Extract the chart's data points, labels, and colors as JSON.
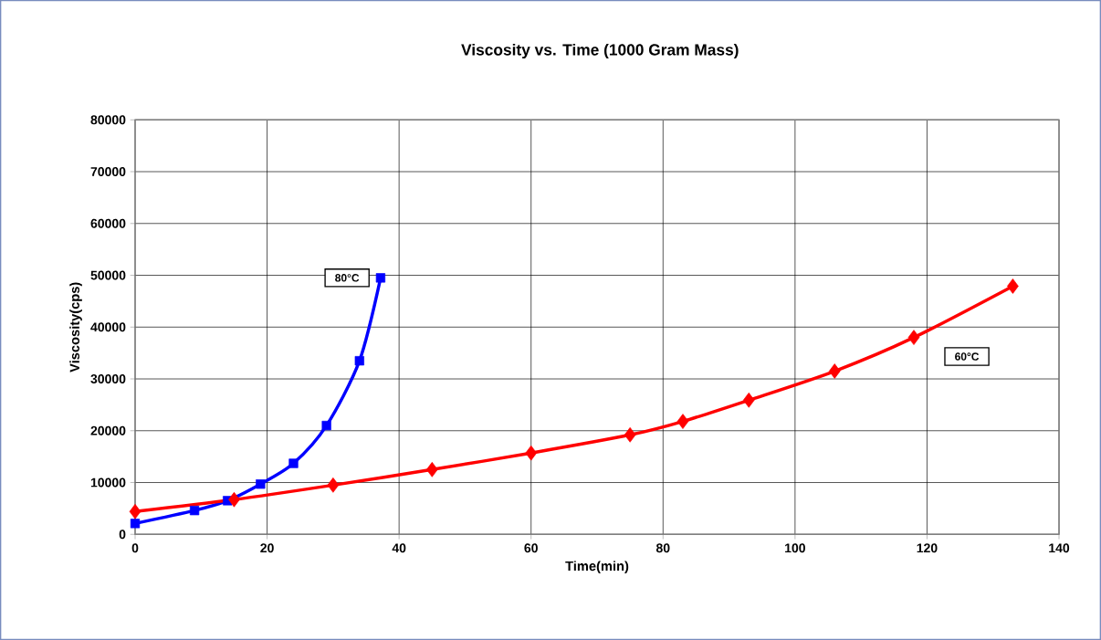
{
  "chart_data": {
    "type": "line",
    "title": "Viscosity vs. Time (1000 Gram Mass)",
    "xlabel": "Time(min)",
    "ylabel": "Viscosity(cps)",
    "series": [
      {
        "name": "80°C",
        "color": "#0000ff",
        "marker": "square",
        "x": [
          0,
          9,
          14,
          19,
          24,
          29,
          34,
          37.2
        ],
        "values": [
          2100,
          4600,
          6500,
          9700,
          13700,
          21000,
          33500,
          49500
        ]
      },
      {
        "name": "60°C",
        "color": "#ff0000",
        "marker": "diamond",
        "x": [
          0,
          15,
          30,
          45,
          60,
          75,
          83,
          93,
          106,
          118,
          133
        ],
        "values": [
          4400,
          6700,
          9500,
          12500,
          15700,
          19200,
          21800,
          25900,
          31500,
          38000,
          47900
        ]
      }
    ],
    "xlim": [
      0,
      140
    ],
    "xticks": [
      0,
      20,
      40,
      60,
      80,
      100,
      120,
      140
    ],
    "ylim": [
      0,
      80000
    ],
    "yticks": [
      0,
      10000,
      20000,
      30000,
      40000,
      50000,
      60000,
      70000,
      80000
    ],
    "grid": true,
    "legend": false,
    "line_style": "solid"
  }
}
